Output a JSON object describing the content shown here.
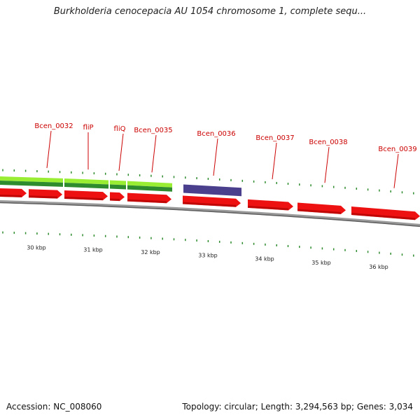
{
  "title": "Burkholderia cenocepacia AU 1054 chromosome 1, complete sequ...",
  "footer": {
    "accession": "Accession: NC_008060",
    "summary": "Topology: circular; Length: 3,294,563 bp; Genes: 3,034"
  },
  "colors": {
    "cds": "#ee1111",
    "cds_dark": "#a40000",
    "rna_light": "#99ee33",
    "rna_dark": "#2e8b2e",
    "highlight": "#4a3f8c",
    "label": "#cc0000",
    "tick": "#2e8b2e",
    "backbone": "#7a7a7a"
  },
  "scale_labels": [
    "30 kbp",
    "31 kbp",
    "32 kbp",
    "33 kbp",
    "34 kbp",
    "35 kbp",
    "36 kbp"
  ],
  "gene_labels": [
    "Bcen_0032",
    "fliP",
    "fliQ",
    "Bcen_0035",
    "Bcen_0036",
    "Bcen_0037",
    "Bcen_0038",
    "Bcen_0039"
  ]
}
